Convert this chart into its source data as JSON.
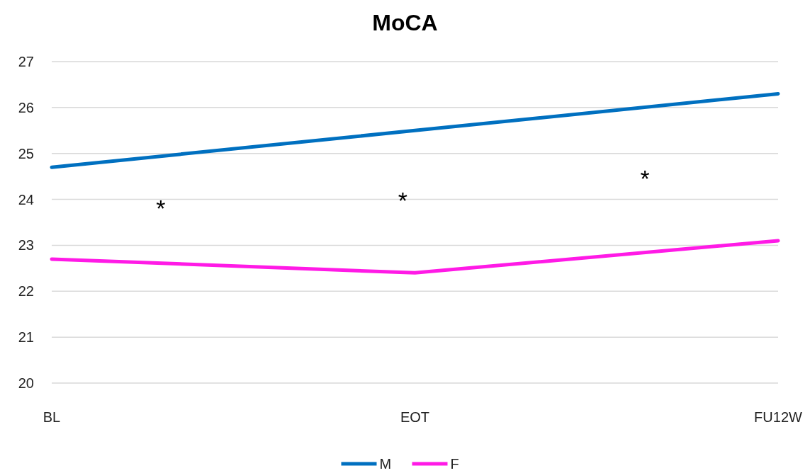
{
  "chart_data": {
    "type": "line",
    "title": "MoCA",
    "categories": [
      "BL",
      "EOT",
      "FU12W"
    ],
    "series": [
      {
        "name": "M",
        "color": "#0070c0",
        "values": [
          24.7,
          25.5,
          26.3
        ]
      },
      {
        "name": "F",
        "color": "#ff1ae6",
        "values": [
          22.7,
          22.4,
          23.1
        ]
      }
    ],
    "ylim": [
      20,
      27
    ],
    "yticks": [
      20,
      21,
      22,
      23,
      24,
      25,
      26,
      27
    ],
    "grid": "y",
    "legend": "bottom",
    "marker": "none",
    "line_style": "solid",
    "annotations": [
      "*",
      "*",
      "*"
    ]
  }
}
